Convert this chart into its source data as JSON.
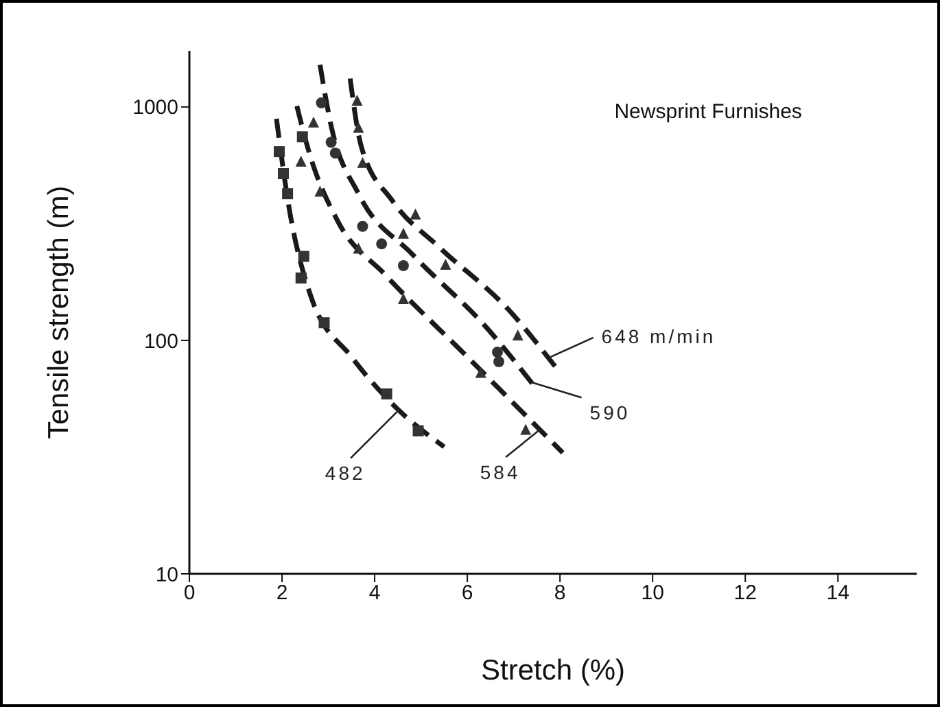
{
  "chart_data": {
    "type": "scatter",
    "title": "Newsprint Furnishes",
    "xlabel": "Stretch (%)",
    "ylabel": "Tensile strength (m)",
    "log": "y",
    "xlim": [
      0,
      15.7
    ],
    "xticks": [
      0,
      2,
      4,
      6,
      8,
      10,
      12,
      14
    ],
    "ylim": [
      10,
      1740
    ],
    "yticks": [
      10,
      100,
      1000
    ],
    "series": [
      {
        "type": "line",
        "line_style": "dashed",
        "marker": "none",
        "color": "#1a1a1a",
        "x": [
          1.88,
          2.15,
          2.62,
          3.5,
          4.53,
          5.5
        ],
        "values": [
          890,
          372,
          155,
          85,
          50,
          35
        ]
      },
      {
        "type": "line",
        "line_style": "dashed",
        "marker": "none",
        "color": "#1a1a1a",
        "x": [
          2.32,
          2.59,
          3.2,
          4.24,
          6.0,
          8.06
        ],
        "values": [
          1010,
          634,
          325,
          190,
          85,
          33
        ]
      },
      {
        "type": "line",
        "line_style": "dashed",
        "marker": "none",
        "color": "#1a1a1a",
        "x": [
          2.82,
          3.06,
          3.65,
          4.82,
          6.44,
          7.41
        ],
        "values": [
          1515,
          830,
          425,
          233,
          112,
          65
        ]
      },
      {
        "type": "line",
        "line_style": "dashed",
        "marker": "none",
        "color": "#1a1a1a",
        "x": [
          3.47,
          3.71,
          4.38,
          5.41,
          6.88,
          7.97
        ],
        "values": [
          1324,
          678,
          397,
          249,
          136,
          74
        ]
      },
      {
        "marker": "square",
        "color": "#333333",
        "x": [
          2.44,
          1.94,
          2.03,
          2.12,
          2.47,
          2.41,
          2.91,
          4.26,
          4.94
        ],
        "values": [
          745,
          643,
          518,
          425,
          229,
          185,
          119,
          59,
          41
        ]
      },
      {
        "marker": "triangle",
        "color": "#333333",
        "x": [
          2.68,
          2.41,
          2.82,
          3.65,
          4.62,
          6.29,
          7.26
        ],
        "values": [
          851,
          578,
          430,
          245,
          149,
          72,
          41
        ]
      },
      {
        "marker": "circle",
        "color": "#333333",
        "x": [
          2.85,
          3.06,
          3.15,
          3.74,
          4.15,
          4.62,
          6.65,
          6.68
        ],
        "values": [
          1041,
          706,
          634,
          308,
          259,
          209,
          89,
          81
        ]
      },
      {
        "marker": "triangle",
        "color": "#333333",
        "x": [
          3.62,
          3.65,
          3.74,
          4.88,
          4.62,
          5.53,
          7.09
        ],
        "values": [
          1055,
          807,
          570,
          343,
          284,
          209,
          104
        ]
      }
    ],
    "annotations": [
      {
        "text": "648 m/min",
        "x": 7.8,
        "y": 85
      },
      {
        "text": "590",
        "x": 7.4,
        "y": 66
      },
      {
        "text": "584",
        "x": 7.6,
        "y": 42
      },
      {
        "text": "482",
        "x": 4.55,
        "y": 51
      }
    ]
  }
}
